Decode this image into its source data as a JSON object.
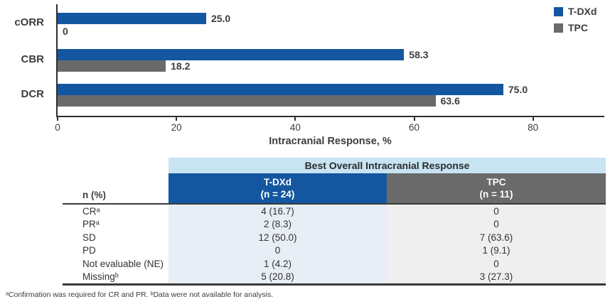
{
  "colors": {
    "tdxd_blue": "#1457a0",
    "tpc_gray": "#6a6a6a",
    "axis": "#2f2f2f",
    "table_title_band": "#c8e4f3",
    "tdxd_cell_bg": "#e8eef6",
    "tpc_cell_bg": "#efefef",
    "text_dark": "#3d3d3d"
  },
  "chart_data": {
    "type": "bar",
    "orientation": "horizontal",
    "categories": [
      "cORR",
      "CBR",
      "DCR"
    ],
    "series": [
      {
        "name": "T-DXd",
        "color": "#1457a0",
        "values": [
          25.0,
          58.3,
          75.0
        ],
        "labels": [
          "25.0",
          "58.3",
          "75.0"
        ]
      },
      {
        "name": "TPC",
        "color": "#6a6a6a",
        "values": [
          0,
          18.2,
          63.6
        ],
        "labels": [
          "0",
          "18.2",
          "63.6"
        ]
      }
    ],
    "xlabel": "Intracranial Response, %",
    "x_ticks": [
      0,
      20,
      40,
      60,
      80
    ],
    "xlim": [
      0,
      92
    ],
    "grid": false,
    "legend_position": "top-right"
  },
  "legend": {
    "items": [
      {
        "label": "T-DXd",
        "color": "#1457a0"
      },
      {
        "label": "TPC",
        "color": "#6a6a6a"
      }
    ]
  },
  "table": {
    "title": "Best Overall Intracranial Response",
    "left_header": "n (%)",
    "columns": [
      {
        "name": "T-DXd",
        "sub": "(n = 24)"
      },
      {
        "name": "TPC",
        "sub": "(n = 11)"
      }
    ],
    "rows": [
      {
        "label": "CRᵃ",
        "tdxd": "4 (16.7)",
        "tpc": "0"
      },
      {
        "label": "PRᵃ",
        "tdxd": "2 (8.3)",
        "tpc": "0"
      },
      {
        "label": "SD",
        "tdxd": "12 (50.0)",
        "tpc": "7 (63.6)"
      },
      {
        "label": "PD",
        "tdxd": "0",
        "tpc": "1 (9.1)"
      },
      {
        "label": "Not evaluable (NE)",
        "tdxd": "1 (4.2)",
        "tpc": "0"
      },
      {
        "label": "Missingᵇ",
        "tdxd": "5 (20.8)",
        "tpc": "3 (27.3)"
      }
    ]
  },
  "footnote": "ᵃConfirmation was required for CR and PR. ᵇData were not available for analysis."
}
